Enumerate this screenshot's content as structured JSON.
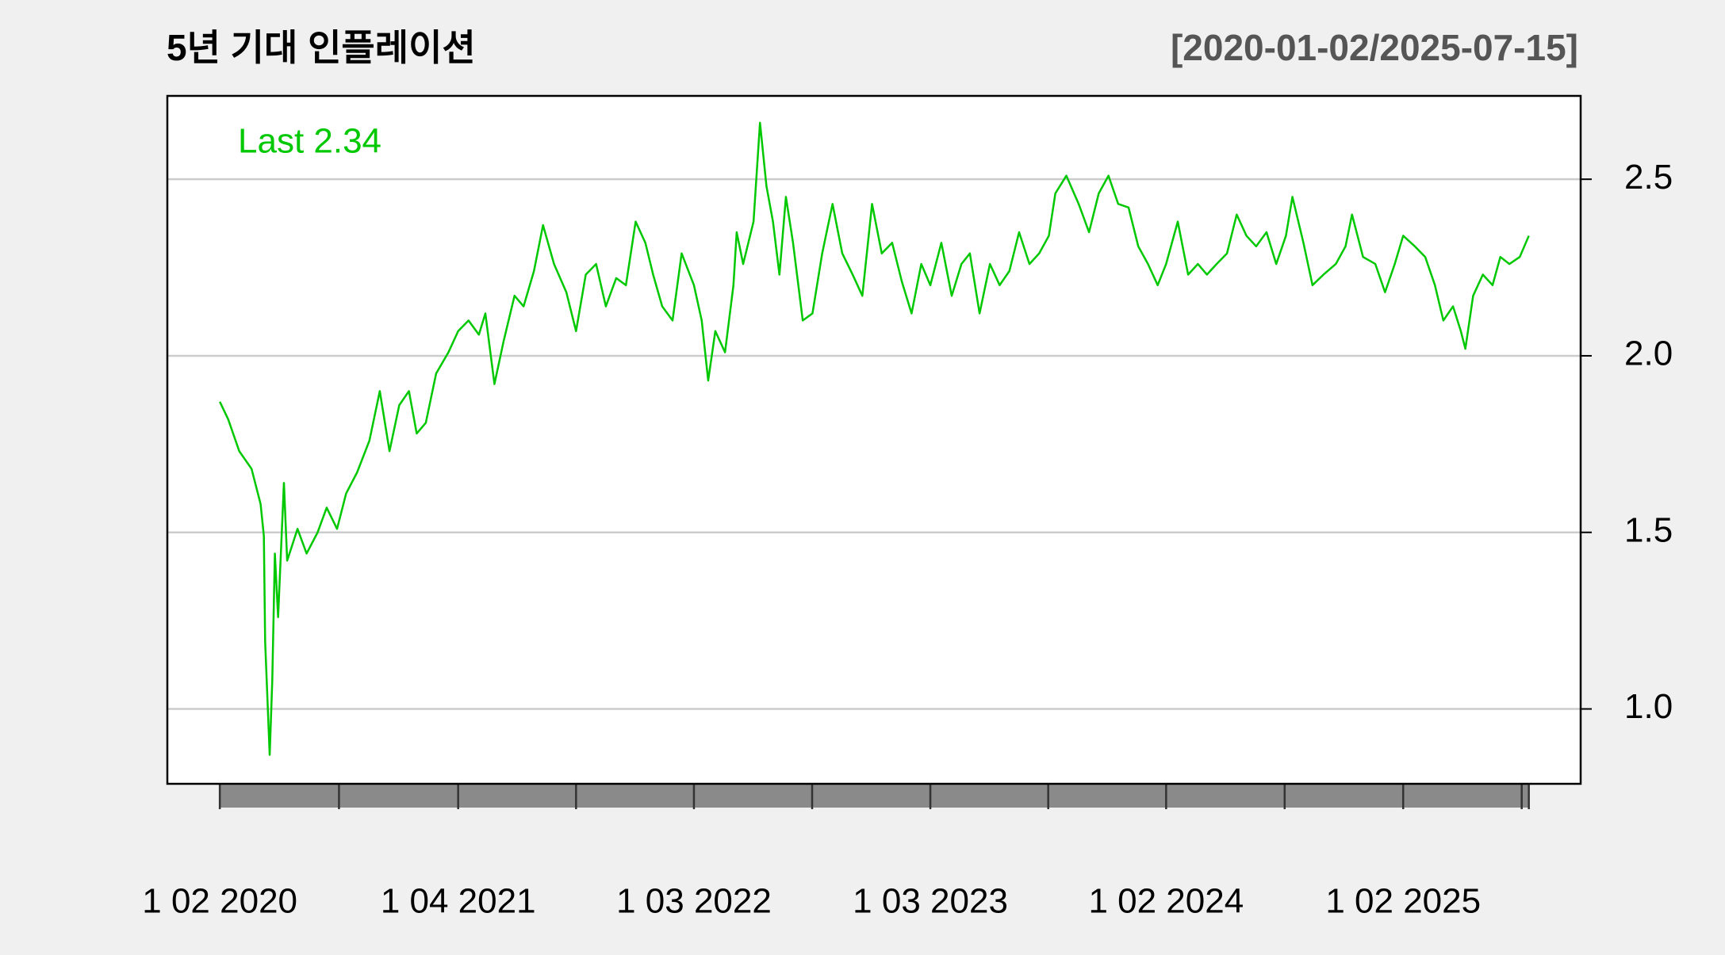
{
  "chart_data": {
    "type": "line",
    "title": "5년 기대 인플레이션",
    "subtitle": "[2020-01-02/2025-07-15]",
    "annotation": "Last 2.34",
    "color": "#00c800",
    "x": [
      "2020-01-02",
      "2020-01-15",
      "2020-02-01",
      "2020-02-20",
      "2020-03-05",
      "2020-03-10",
      "2020-03-12",
      "2020-03-19",
      "2020-03-23",
      "2020-03-27",
      "2020-04-01",
      "2020-04-10",
      "2020-04-15",
      "2020-05-01",
      "2020-05-15",
      "2020-06-01",
      "2020-06-15",
      "2020-07-01",
      "2020-07-15",
      "2020-08-01",
      "2020-08-20",
      "2020-09-05",
      "2020-09-20",
      "2020-10-05",
      "2020-10-20",
      "2020-11-01",
      "2020-11-15",
      "2020-12-01",
      "2020-12-20",
      "2021-01-04",
      "2021-01-20",
      "2021-02-05",
      "2021-02-15",
      "2021-03-01",
      "2021-03-15",
      "2021-04-01",
      "2021-04-15",
      "2021-05-01",
      "2021-05-15",
      "2021-06-01",
      "2021-06-20",
      "2021-07-05",
      "2021-07-20",
      "2021-08-05",
      "2021-08-20",
      "2021-09-05",
      "2021-09-20",
      "2021-10-05",
      "2021-10-20",
      "2021-11-01",
      "2021-11-15",
      "2021-12-01",
      "2021-12-15",
      "2022-01-03",
      "2022-01-15",
      "2022-01-25",
      "2022-02-05",
      "2022-02-20",
      "2022-03-05",
      "2022-03-10",
      "2022-03-20",
      "2022-04-05",
      "2022-04-15",
      "2022-04-25",
      "2022-05-05",
      "2022-05-15",
      "2022-05-25",
      "2022-06-05",
      "2022-06-20",
      "2022-07-05",
      "2022-07-20",
      "2022-08-05",
      "2022-08-20",
      "2022-09-05",
      "2022-09-20",
      "2022-10-05",
      "2022-10-20",
      "2022-11-05",
      "2022-11-20",
      "2022-12-05",
      "2022-12-20",
      "2023-01-03",
      "2023-01-20",
      "2023-02-05",
      "2023-02-20",
      "2023-03-05",
      "2023-03-20",
      "2023-04-05",
      "2023-04-20",
      "2023-05-05",
      "2023-05-20",
      "2023-06-05",
      "2023-06-20",
      "2023-07-05",
      "2023-07-15",
      "2023-08-01",
      "2023-08-20",
      "2023-09-05",
      "2023-09-20",
      "2023-10-05",
      "2023-10-20",
      "2023-11-05",
      "2023-11-20",
      "2023-12-05",
      "2023-12-20",
      "2024-01-02",
      "2024-01-20",
      "2024-02-05",
      "2024-02-20",
      "2024-03-05",
      "2024-03-20",
      "2024-04-05",
      "2024-04-20",
      "2024-05-05",
      "2024-05-20",
      "2024-06-05",
      "2024-06-20",
      "2024-07-05",
      "2024-07-15",
      "2024-08-01",
      "2024-08-15",
      "2024-09-01",
      "2024-09-20",
      "2024-10-05",
      "2024-10-15",
      "2024-11-01",
      "2024-11-20",
      "2024-12-05",
      "2024-12-20",
      "2025-01-02",
      "2025-01-20",
      "2025-02-05",
      "2025-02-20",
      "2025-03-05",
      "2025-03-20",
      "2025-04-01",
      "2025-04-08",
      "2025-04-20",
      "2025-05-05",
      "2025-05-20",
      "2025-06-01",
      "2025-06-15",
      "2025-07-01",
      "2025-07-15"
    ],
    "values": [
      1.87,
      1.82,
      1.73,
      1.68,
      1.58,
      1.49,
      1.19,
      0.87,
      1.08,
      1.44,
      1.26,
      1.64,
      1.42,
      1.51,
      1.44,
      1.5,
      1.57,
      1.51,
      1.61,
      1.67,
      1.76,
      1.9,
      1.73,
      1.86,
      1.9,
      1.78,
      1.81,
      1.95,
      2.01,
      2.07,
      2.1,
      2.06,
      2.12,
      1.92,
      2.04,
      2.17,
      2.14,
      2.24,
      2.37,
      2.26,
      2.18,
      2.07,
      2.23,
      2.26,
      2.14,
      2.22,
      2.2,
      2.38,
      2.32,
      2.23,
      2.14,
      2.1,
      2.29,
      2.2,
      2.1,
      1.93,
      2.07,
      2.01,
      2.2,
      2.35,
      2.26,
      2.38,
      2.66,
      2.48,
      2.38,
      2.23,
      2.45,
      2.32,
      2.1,
      2.12,
      2.29,
      2.43,
      2.29,
      2.23,
      2.17,
      2.43,
      2.29,
      2.32,
      2.21,
      2.12,
      2.26,
      2.2,
      2.32,
      2.17,
      2.26,
      2.29,
      2.12,
      2.26,
      2.2,
      2.24,
      2.35,
      2.26,
      2.29,
      2.34,
      2.46,
      2.51,
      2.43,
      2.35,
      2.46,
      2.51,
      2.43,
      2.42,
      2.31,
      2.26,
      2.2,
      2.26,
      2.38,
      2.23,
      2.26,
      2.23,
      2.26,
      2.29,
      2.4,
      2.34,
      2.31,
      2.35,
      2.26,
      2.34,
      2.45,
      2.32,
      2.2,
      2.23,
      2.26,
      2.31,
      2.4,
      2.28,
      2.26,
      2.18,
      2.26,
      2.34,
      2.31,
      2.28,
      2.2,
      2.1,
      2.14,
      2.07,
      2.02,
      2.17,
      2.23,
      2.2,
      2.28,
      2.26,
      2.28,
      2.34
    ],
    "xlim": [
      "2019-10-13",
      "2025-10-03"
    ],
    "xticks": [
      {
        "value": "2020-01-02",
        "label": "1 02 2020"
      },
      {
        "value": "2021-01-04",
        "label": "1 04 2021"
      },
      {
        "value": "2022-01-03",
        "label": "1 03 2022"
      },
      {
        "value": "2023-01-03",
        "label": "1 03 2023"
      },
      {
        "value": "2024-01-02",
        "label": "1 02 2024"
      },
      {
        "value": "2025-01-02",
        "label": "1 02 2025"
      }
    ],
    "ylim": [
      0.788,
      2.736
    ],
    "yticks": [
      {
        "value": 1,
        "label": "1.0"
      },
      1.5,
      {
        "value": 2,
        "label": "2.0"
      },
      2.5
    ],
    "grid": true
  }
}
